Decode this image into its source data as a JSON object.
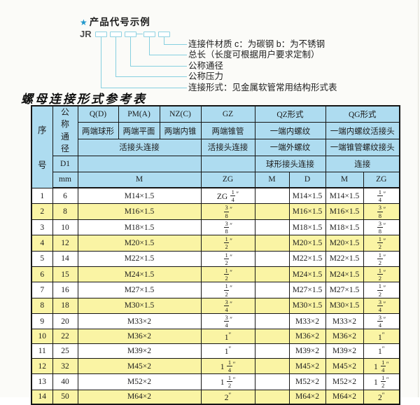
{
  "diagram": {
    "star_icon": "★",
    "heading": "产品代号示例",
    "code_prefix": "JR",
    "separator": "-",
    "labels": [
      "连接件材质  c：为碳钢  b：为不锈钢",
      "总长（长度可根据用户要求定制）",
      "公称通径",
      "公称压力",
      "连接形式：见金属软管常用结构形式表"
    ]
  },
  "table": {
    "title": "螺母连接形式参考表",
    "header": {
      "seq_top": "序",
      "seq_bottom": "号",
      "dn": "公称通径",
      "d1": "D1",
      "mm": "mm",
      "q_code": "Q(D)",
      "q_desc": "两端球形",
      "pm_code": "PM(A)",
      "pm_desc": "两端平面",
      "nz_code": "NZ(C)",
      "nz_desc": "两端内锥",
      "gz_code": "GZ",
      "gz_desc": "两端锥管",
      "gz_row3": "活接头连接",
      "gz_unit": "ZG",
      "qpmnz_row3": "活接头连接",
      "m_unit": "M",
      "qz_code": "QZ形式",
      "qz_row2": "一端内螺纹",
      "qz_row3": "一端外螺纹",
      "qz_row4": "球形接头连接",
      "qz_unit1": "M",
      "qz_unit2": "D",
      "qg_code": "QG形式",
      "qg_row2": "一端内螺纹活接头",
      "qg_row3": "一端锥管螺纹接头",
      "qg_row4": "连接",
      "qg_unit1": "M",
      "qg_unit2": "ZG"
    },
    "rows": [
      {
        "seq": "1",
        "dn": "6",
        "m": "M14×1.5",
        "gz": "ZG 1/4″",
        "qz_m": "",
        "qz_d": "M14×1.5",
        "qg_m": "M14×1.5",
        "qg_zg": "1/4″"
      },
      {
        "seq": "2",
        "dn": "8",
        "m": "M16×1.5",
        "gz": "3/8″",
        "qz_m": "",
        "qz_d": "M16×1.5",
        "qg_m": "M16×1.5",
        "qg_zg": "3/8″"
      },
      {
        "seq": "3",
        "dn": "10",
        "m": "M18×1.5",
        "gz": "3/8″",
        "qz_m": "",
        "qz_d": "M18×1.5",
        "qg_m": "M18×1.5",
        "qg_zg": "3/8″"
      },
      {
        "seq": "4",
        "dn": "12",
        "m": "M20×1.5",
        "gz": "1/2″",
        "qz_m": "",
        "qz_d": "M20×1.5",
        "qg_m": "M20×1.5",
        "qg_zg": "1/2″"
      },
      {
        "seq": "5",
        "dn": "14",
        "m": "M22×1.5",
        "gz": "1/2″",
        "qz_m": "",
        "qz_d": "M22×1.5",
        "qg_m": "M22×1.5",
        "qg_zg": "1/2″"
      },
      {
        "seq": "6",
        "dn": "15",
        "m": "M24×1.5",
        "gz": "1/2″",
        "qz_m": "",
        "qz_d": "M24×1.5",
        "qg_m": "M24×1.5",
        "qg_zg": "1/2″"
      },
      {
        "seq": "7",
        "dn": "16",
        "m": "M27×1.5",
        "gz": "1/2″",
        "qz_m": "",
        "qz_d": "M27×1.5",
        "qg_m": "M27×1.5",
        "qg_zg": "1/2″"
      },
      {
        "seq": "8",
        "dn": "18",
        "m": "M30×1.5",
        "gz": "3/4″",
        "qz_m": "",
        "qz_d": "M30×1.5",
        "qg_m": "M30×1.5",
        "qg_zg": "3/4″"
      },
      {
        "seq": "9",
        "dn": "20",
        "m": "M33×2",
        "gz": "3/4″",
        "qz_m": "",
        "qz_d": "M33×2",
        "qg_m": "M33×2",
        "qg_zg": "3/4″"
      },
      {
        "seq": "10",
        "dn": "22",
        "m": "M36×2",
        "gz": "1″",
        "qz_m": "",
        "qz_d": "M36×2",
        "qg_m": "M36×2",
        "qg_zg": "1″"
      },
      {
        "seq": "11",
        "dn": "25",
        "m": "M39×2",
        "gz": "1″",
        "qz_m": "",
        "qz_d": "M39×2",
        "qg_m": "M39×2",
        "qg_zg": "1″"
      },
      {
        "seq": "12",
        "dn": "32",
        "m": "M45×2",
        "gz": "1 1/4″",
        "qz_m": "",
        "qz_d": "M45×2",
        "qg_m": "M45×2",
        "qg_zg": "1 1/4″"
      },
      {
        "seq": "13",
        "dn": "40",
        "m": "M52×2",
        "gz": "1 1/2″",
        "qz_m": "",
        "qz_d": "M52×2",
        "qg_m": "M52×2",
        "qg_zg": "1 1/2″"
      },
      {
        "seq": "14",
        "dn": "50",
        "m": "M64×2",
        "gz": "2″",
        "qz_m": "",
        "qz_d": "M64×2",
        "qg_m": "M64×2",
        "qg_zg": "2″"
      }
    ]
  },
  "colors": {
    "header_bg": "#aedcf0",
    "row_alt_bg": "#faf4a4",
    "leader_line": "#86d0e0",
    "star_blue": "#2098cc",
    "border": "#161616"
  }
}
